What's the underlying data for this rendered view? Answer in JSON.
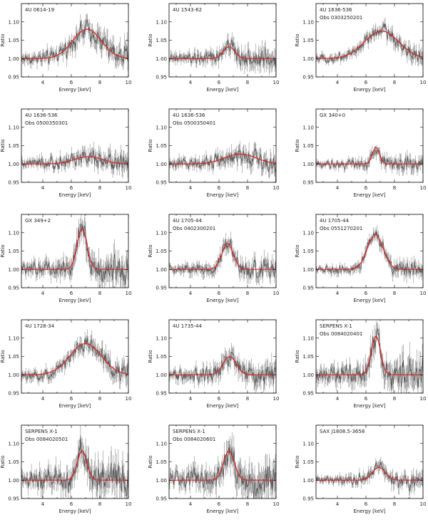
{
  "colors": {
    "model": "#e02020",
    "data": "#555555",
    "axes": "#000000"
  },
  "chart_data": [
    {
      "type": "line",
      "labels": [
        "4U 0614-19"
      ],
      "xlabel": "Energy [keV]",
      "ylabel": "Ratio",
      "xlim": [
        2.5,
        10
      ],
      "ylim": [
        0.95,
        1.15
      ],
      "xticks": [
        4,
        6,
        8,
        10
      ],
      "yticks": [
        0.95,
        1.0,
        1.05,
        1.1
      ],
      "model": {
        "center": 7.1,
        "amplitude": 0.08,
        "sigma": 1.0
      },
      "noise": 0.018
    },
    {
      "type": "line",
      "labels": [
        "4U 1543-62"
      ],
      "xlabel": "Energy [keV]",
      "ylabel": "Ratio",
      "xlim": [
        2.5,
        10
      ],
      "ylim": [
        0.95,
        1.15
      ],
      "xticks": [
        4,
        6,
        8,
        10
      ],
      "yticks": [
        0.95,
        1.0,
        1.05,
        1.1
      ],
      "model": {
        "center": 6.7,
        "amplitude": 0.032,
        "sigma": 0.4
      },
      "noise": 0.016
    },
    {
      "type": "line",
      "labels": [
        "4U 1636-536",
        "Obs 0303250201"
      ],
      "xlabel": "Energy [keV]",
      "ylabel": "Ratio",
      "xlim": [
        2.5,
        10
      ],
      "ylim": [
        0.95,
        1.15
      ],
      "xticks": [
        4,
        6,
        8,
        10
      ],
      "yticks": [
        0.95,
        1.0,
        1.05,
        1.1
      ],
      "model": {
        "center": 7.1,
        "amplitude": 0.075,
        "sigma": 1.2
      },
      "noise": 0.012
    },
    {
      "type": "line",
      "labels": [
        "4U 1636-536",
        "Obs 0500350301"
      ],
      "xlabel": "Energy [keV]",
      "ylabel": "Ratio",
      "xlim": [
        2.5,
        10
      ],
      "ylim": [
        0.95,
        1.15
      ],
      "xticks": [
        4,
        6,
        8,
        10
      ],
      "yticks": [
        0.95,
        1.0,
        1.05,
        1.1
      ],
      "model": {
        "center": 7.2,
        "amplitude": 0.02,
        "sigma": 1.0
      },
      "noise": 0.015
    },
    {
      "type": "line",
      "labels": [
        "4U 1636-536",
        "Obs 0500350401"
      ],
      "xlabel": "Energy [keV]",
      "ylabel": "Ratio",
      "xlim": [
        2.5,
        10
      ],
      "ylim": [
        0.95,
        1.15
      ],
      "xticks": [
        4,
        6,
        8,
        10
      ],
      "yticks": [
        0.95,
        1.0,
        1.05,
        1.1
      ],
      "model": {
        "center": 7.5,
        "amplitude": 0.027,
        "sigma": 1.1
      },
      "noise": 0.016
    },
    {
      "type": "line",
      "labels": [
        "GX 340+0"
      ],
      "xlabel": "Energy [keV]",
      "ylabel": "Ratio",
      "xlim": [
        2.5,
        10
      ],
      "ylim": [
        0.95,
        1.15
      ],
      "xticks": [
        4,
        6,
        8,
        10
      ],
      "yticks": [
        0.95,
        1.0,
        1.05,
        1.1
      ],
      "model": {
        "center": 6.7,
        "amplitude": 0.045,
        "sigma": 0.25
      },
      "noise": 0.012
    },
    {
      "type": "line",
      "labels": [
        "GX 349+2"
      ],
      "xlabel": "Energy [keV]",
      "ylabel": "Ratio",
      "xlim": [
        2.5,
        10
      ],
      "ylim": [
        0.95,
        1.15
      ],
      "xticks": [
        4,
        6,
        8,
        10
      ],
      "yticks": [
        0.95,
        1.0,
        1.05,
        1.1
      ],
      "model": {
        "center": 6.75,
        "amplitude": 0.11,
        "sigma": 0.35
      },
      "noise": 0.022
    },
    {
      "type": "line",
      "labels": [
        "4U 1705-44",
        "Obs 0402300201"
      ],
      "xlabel": "Energy [keV]",
      "ylabel": "Ratio",
      "xlim": [
        2.5,
        10
      ],
      "ylim": [
        0.95,
        1.15
      ],
      "xticks": [
        4,
        6,
        8,
        10
      ],
      "yticks": [
        0.95,
        1.0,
        1.05,
        1.1
      ],
      "model": {
        "center": 6.6,
        "amplitude": 0.07,
        "sigma": 0.4
      },
      "noise": 0.015
    },
    {
      "type": "line",
      "labels": [
        "4U 1705-44",
        "Obs 0551270201"
      ],
      "xlabel": "Energy [keV]",
      "ylabel": "Ratio",
      "xlim": [
        2.5,
        10
      ],
      "ylim": [
        0.95,
        1.15
      ],
      "xticks": [
        4,
        6,
        8,
        10
      ],
      "yticks": [
        0.95,
        1.0,
        1.05,
        1.1
      ],
      "model": {
        "center": 6.65,
        "amplitude": 0.095,
        "sigma": 0.55
      },
      "noise": 0.012
    },
    {
      "type": "line",
      "labels": [
        "4U 1728-34"
      ],
      "xlabel": "Energy [keV]",
      "ylabel": "Ratio",
      "xlim": [
        2.5,
        10
      ],
      "ylim": [
        0.95,
        1.15
      ],
      "xticks": [
        4,
        6,
        8,
        10
      ],
      "yticks": [
        0.95,
        1.0,
        1.05,
        1.1
      ],
      "model": {
        "center": 7.0,
        "amplitude": 0.085,
        "sigma": 1.1
      },
      "noise": 0.016
    },
    {
      "type": "line",
      "labels": [
        "4U 1735-44"
      ],
      "xlabel": "Energy [keV]",
      "ylabel": "Ratio",
      "xlim": [
        2.5,
        10
      ],
      "ylim": [
        0.95,
        1.15
      ],
      "xticks": [
        4,
        6,
        8,
        10
      ],
      "yticks": [
        0.95,
        1.0,
        1.05,
        1.1
      ],
      "model": {
        "center": 6.75,
        "amplitude": 0.05,
        "sigma": 0.45
      },
      "noise": 0.018
    },
    {
      "type": "line",
      "labels": [
        "SERPENS X-1",
        "Obs 0084020401"
      ],
      "xlabel": "Energy [keV]",
      "ylabel": "Ratio",
      "xlim": [
        2.5,
        10
      ],
      "ylim": [
        0.95,
        1.15
      ],
      "xticks": [
        4,
        6,
        8,
        10
      ],
      "yticks": [
        0.95,
        1.0,
        1.05,
        1.1
      ],
      "model": {
        "center": 6.7,
        "amplitude": 0.105,
        "sigma": 0.32
      },
      "noise": 0.025
    },
    {
      "type": "line",
      "labels": [
        "SERPENS X-1",
        "Obs 0084020501"
      ],
      "xlabel": "Energy [keV]",
      "ylabel": "Ratio",
      "xlim": [
        2.5,
        10
      ],
      "ylim": [
        0.95,
        1.15
      ],
      "xticks": [
        4,
        6,
        8,
        10
      ],
      "yticks": [
        0.95,
        1.0,
        1.05,
        1.1
      ],
      "model": {
        "center": 6.75,
        "amplitude": 0.08,
        "sigma": 0.33
      },
      "noise": 0.028
    },
    {
      "type": "line",
      "labels": [
        "SERPENS X-1",
        "Obs 0084020601"
      ],
      "xlabel": "Energy [keV]",
      "ylabel": "Ratio",
      "xlim": [
        2.5,
        10
      ],
      "ylim": [
        0.95,
        1.15
      ],
      "xticks": [
        4,
        6,
        8,
        10
      ],
      "yticks": [
        0.95,
        1.0,
        1.05,
        1.1
      ],
      "model": {
        "center": 6.7,
        "amplitude": 0.08,
        "sigma": 0.38
      },
      "noise": 0.028
    },
    {
      "type": "line",
      "labels": [
        "SAX J1808.5-3658"
      ],
      "xlabel": "Energy [keV]",
      "ylabel": "Ratio",
      "xlim": [
        2.5,
        10
      ],
      "ylim": [
        0.95,
        1.15
      ],
      "xticks": [
        4,
        6,
        8,
        10
      ],
      "yticks": [
        0.95,
        1.0,
        1.05,
        1.1
      ],
      "model": {
        "center": 6.9,
        "amplitude": 0.035,
        "sigma": 0.45
      },
      "noise": 0.012
    }
  ]
}
